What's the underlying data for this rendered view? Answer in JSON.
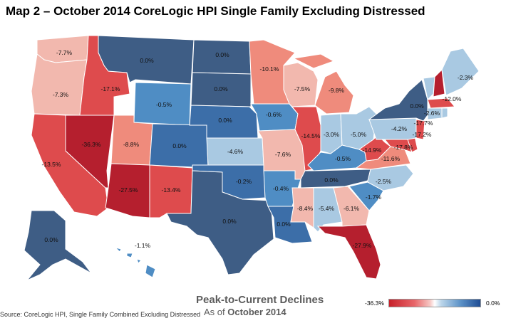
{
  "title": "Map 2 – October 2014 CoreLogic HPI Single Family Excluding Distressed",
  "legend": {
    "title": "Peak-to-Current Declines",
    "subtitle_prefix": "As of ",
    "subtitle_date": "October 2014",
    "min_label": "-36.3%",
    "max_label": "0.0%",
    "min_value": -36.3,
    "max_value": 0.0
  },
  "source": "Source: CoreLogic HPI, Single Family Combined Excluding Distressed",
  "colors": {
    "deep_red": "#b51f2e",
    "red": "#de4b4d",
    "salmon": "#ef8b7c",
    "pink": "#f2b8ae",
    "light_blue": "#a9c9e2",
    "mid_blue": "#4f8dc4",
    "dark_blue": "#3c6ea8",
    "navy": "#3e5d85"
  },
  "states": [
    {
      "code": "WA",
      "label": "-7.7%",
      "value": -7.7
    },
    {
      "code": "OR",
      "label": "-7.3%",
      "value": -7.3
    },
    {
      "code": "CA",
      "label": "-13.5%",
      "value": -13.5
    },
    {
      "code": "NV",
      "label": "-36.3%",
      "value": -36.3
    },
    {
      "code": "ID",
      "label": "-17.1%",
      "value": -17.1
    },
    {
      "code": "MT",
      "label": "0.0%",
      "value": 0.0
    },
    {
      "code": "WY",
      "label": "-0.5%",
      "value": -0.5
    },
    {
      "code": "UT",
      "label": "-8.8%",
      "value": -8.8
    },
    {
      "code": "AZ",
      "label": "-27.5%",
      "value": -27.5
    },
    {
      "code": "CO",
      "label": "0.0%",
      "value": 0.0
    },
    {
      "code": "NM",
      "label": "-13.4%",
      "value": -13.4
    },
    {
      "code": "ND",
      "label": "0.0%",
      "value": 0.0
    },
    {
      "code": "SD",
      "label": "0.0%",
      "value": 0.0
    },
    {
      "code": "NE",
      "label": "0.0%",
      "value": 0.0
    },
    {
      "code": "KS",
      "label": "-4.6%",
      "value": -4.6
    },
    {
      "code": "OK",
      "label": "-0.2%",
      "value": -0.2
    },
    {
      "code": "TX",
      "label": "0.0%",
      "value": 0.0
    },
    {
      "code": "MN",
      "label": "-10.1%",
      "value": -10.1
    },
    {
      "code": "IA",
      "label": "-0.6%",
      "value": -0.6
    },
    {
      "code": "MO",
      "label": "-7.6%",
      "value": -7.6
    },
    {
      "code": "AR",
      "label": "-0.4%",
      "value": -0.4
    },
    {
      "code": "LA",
      "label": "0.0%",
      "value": 0.0
    },
    {
      "code": "WI",
      "label": "-7.5%",
      "value": -7.5
    },
    {
      "code": "IL",
      "label": "-14.5%",
      "value": -14.5
    },
    {
      "code": "MI",
      "label": "-9.8%",
      "value": -9.8
    },
    {
      "code": "IN",
      "label": "-3.0%",
      "value": -3.0
    },
    {
      "code": "OH",
      "label": "-5.0%",
      "value": -5.0
    },
    {
      "code": "KY",
      "label": "-0.5%",
      "value": -0.5
    },
    {
      "code": "TN",
      "label": "0.0%",
      "value": 0.0
    },
    {
      "code": "MS",
      "label": "-8.4%",
      "value": -8.4
    },
    {
      "code": "AL",
      "label": "-5.4%",
      "value": -5.4
    },
    {
      "code": "GA",
      "label": "-6.1%",
      "value": -6.1
    },
    {
      "code": "FL",
      "label": "-27.9%",
      "value": -27.9
    },
    {
      "code": "SC",
      "label": "-1.7%",
      "value": -1.7
    },
    {
      "code": "NC",
      "label": "-2.5%",
      "value": -2.5
    },
    {
      "code": "VA",
      "label": "-11.6%",
      "value": -11.6
    },
    {
      "code": "WV",
      "label": "-14.9%",
      "value": -14.9
    },
    {
      "code": "MD",
      "label": "-17.8%",
      "value": -17.8
    },
    {
      "code": "DE",
      "label": "-17.2%",
      "value": -17.2
    },
    {
      "code": "NJ",
      "label": "-17.7%",
      "value": -17.7
    },
    {
      "code": "PA",
      "label": "-4.2%",
      "value": -4.2
    },
    {
      "code": "NY",
      "label": "0.0%",
      "value": 0.0
    },
    {
      "code": "CT",
      "label": "-2.6%",
      "value": -2.6
    },
    {
      "code": "MA",
      "label": "-12.0%",
      "value": -12.0
    },
    {
      "code": "ME",
      "label": "-2.3%",
      "value": -2.3
    },
    {
      "code": "AK",
      "label": "0.0%",
      "value": 0.0
    },
    {
      "code": "HI",
      "label": "-1.1%",
      "value": -1.1
    }
  ]
}
